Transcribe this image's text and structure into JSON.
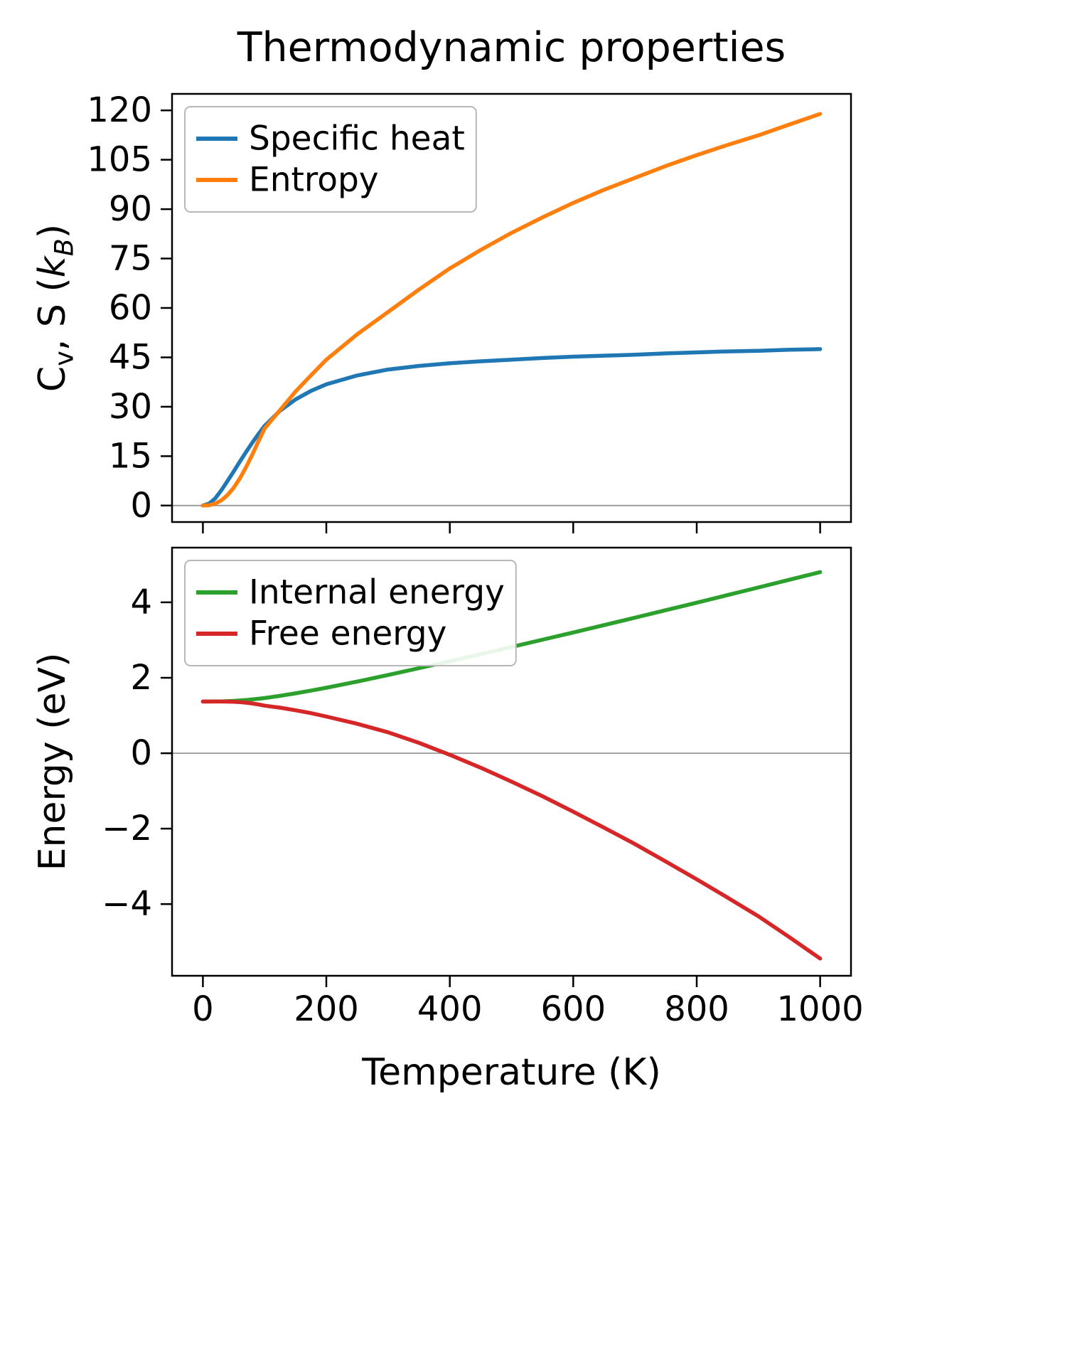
{
  "figure_title": "Thermodynamic properties",
  "xlabel": "Temperature (K)",
  "style": {
    "background": "#ffffff",
    "text_color": "#000000",
    "axis_color": "#000000",
    "zero_line_color": "#999999",
    "legend_border_color": "#b7b7b7",
    "legend_background": "#ffffff"
  },
  "chart_data": [
    {
      "type": "line",
      "ylabel": "C_{v}, S (*k*_{*B*})",
      "xlim": [
        -50,
        1050
      ],
      "ylim": [
        -5,
        125
      ],
      "xticks": [
        0,
        200,
        400,
        600,
        800,
        1000
      ],
      "yticks": [
        0,
        15,
        30,
        45,
        60,
        75,
        90,
        105,
        120
      ],
      "show_xtick_labels": false,
      "legend_position": "upper-left",
      "zero_line": true,
      "grid": false,
      "x": [
        0,
        10,
        20,
        30,
        40,
        50,
        60,
        70,
        80,
        90,
        100,
        125,
        150,
        175,
        200,
        250,
        300,
        350,
        400,
        450,
        500,
        550,
        600,
        650,
        700,
        750,
        800,
        850,
        900,
        950,
        1000
      ],
      "series": [
        {
          "name": "Specific heat",
          "color": "#1f77b4",
          "values": [
            0,
            0.6,
            2.2,
            4.7,
            7.5,
            10.4,
            13.4,
            16.3,
            19.1,
            21.7,
            24.2,
            28.8,
            32.2,
            34.8,
            36.8,
            39.5,
            41.3,
            42.4,
            43.2,
            43.8,
            44.3,
            44.8,
            45.2,
            45.5,
            45.8,
            46.2,
            46.5,
            46.8,
            47.0,
            47.3,
            47.5
          ]
        },
        {
          "name": "Entropy",
          "color": "#ff7f0e",
          "values": [
            0,
            0.1,
            0.6,
            1.6,
            3.2,
            5.4,
            8.3,
            11.7,
            15.5,
            19.5,
            23.4,
            29.0,
            34.6,
            39.5,
            44.3,
            52.0,
            58.8,
            65.6,
            72.0,
            77.6,
            82.8,
            87.5,
            91.9,
            95.9,
            99.5,
            103.1,
            106.4,
            109.5,
            112.4,
            115.7,
            118.9
          ]
        }
      ]
    },
    {
      "type": "line",
      "ylabel": "Energy (eV)",
      "xlim": [
        -50,
        1050
      ],
      "ylim": [
        -5.9,
        5.45
      ],
      "xticks": [
        0,
        200,
        400,
        600,
        800,
        1000
      ],
      "yticks": [
        -4,
        -2,
        0,
        2,
        4
      ],
      "show_xtick_labels": true,
      "legend_position": "upper-left",
      "zero_line": true,
      "grid": false,
      "x": [
        0,
        10,
        20,
        30,
        40,
        50,
        60,
        70,
        80,
        90,
        100,
        125,
        150,
        175,
        200,
        250,
        300,
        350,
        400,
        450,
        500,
        550,
        600,
        650,
        700,
        750,
        800,
        850,
        900,
        950,
        1000
      ],
      "series": [
        {
          "name": "Internal energy",
          "color": "#2ca02c",
          "values": [
            1.37,
            1.37,
            1.371,
            1.374,
            1.38,
            1.387,
            1.398,
            1.41,
            1.426,
            1.443,
            1.463,
            1.52,
            1.586,
            1.658,
            1.735,
            1.9,
            2.074,
            2.254,
            2.438,
            2.626,
            2.816,
            3.008,
            3.201,
            3.397,
            3.593,
            3.792,
            3.991,
            4.192,
            4.394,
            4.598,
            4.802
          ]
        },
        {
          "name": "Free energy",
          "color": "#d62728",
          "values": [
            1.37,
            1.37,
            1.37,
            1.37,
            1.369,
            1.364,
            1.355,
            1.34,
            1.319,
            1.292,
            1.261,
            1.208,
            1.139,
            1.062,
            0.972,
            0.779,
            0.554,
            0.275,
            -0.043,
            -0.383,
            -0.752,
            -1.139,
            -1.55,
            -1.975,
            -2.408,
            -2.872,
            -3.343,
            -3.828,
            -4.323,
            -4.874,
            -5.444
          ]
        }
      ]
    }
  ]
}
